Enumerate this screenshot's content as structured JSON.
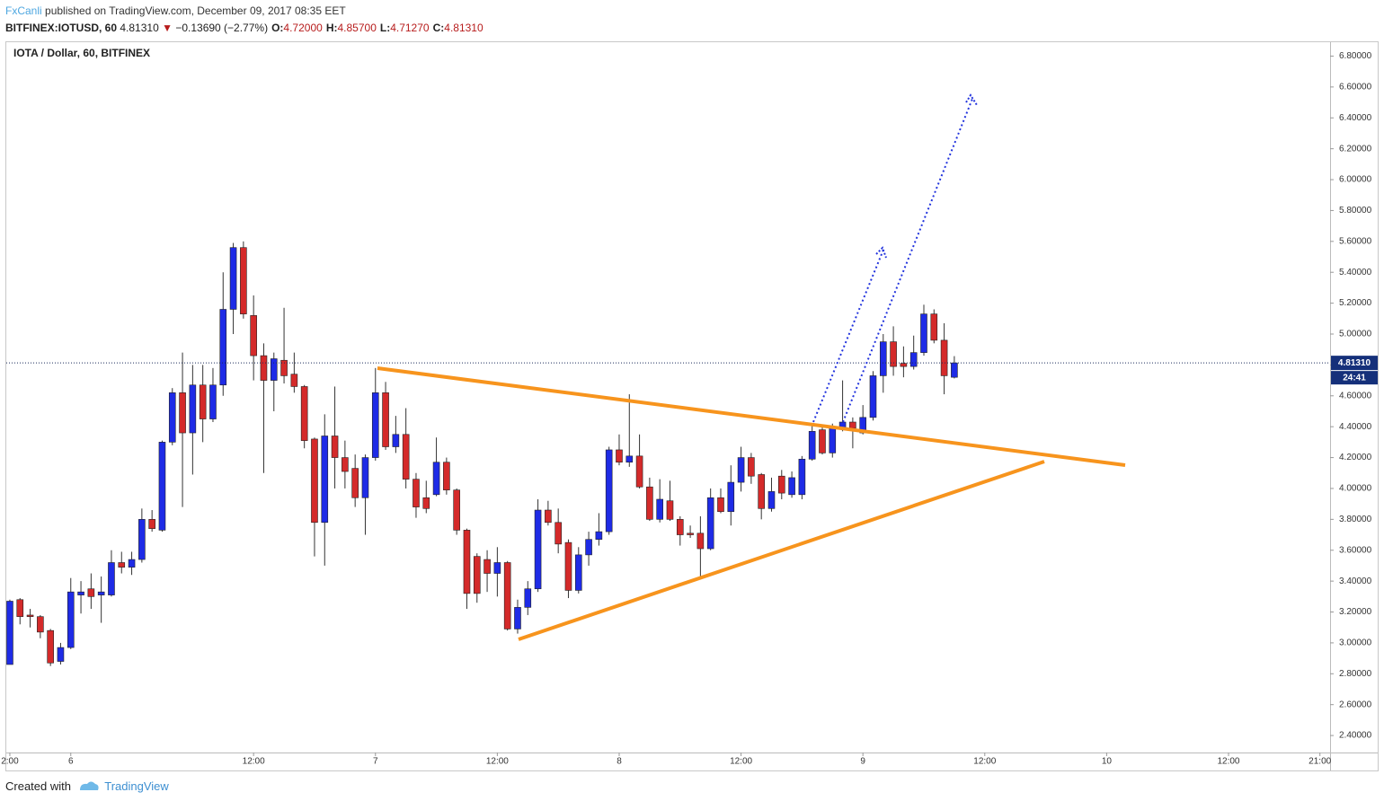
{
  "header": {
    "author": "FxCanli",
    "published": "published on TradingView.com, December 09, 2017 08:35 EET"
  },
  "symbol_bar": {
    "symbol": "BITFINEX:IOTUSD, 60",
    "last": "4.81310",
    "arrow": "▼",
    "change": "−0.13690 (−2.77%)",
    "ohlc": [
      {
        "label": "O:",
        "value": "4.72000"
      },
      {
        "label": "H:",
        "value": "4.85700"
      },
      {
        "label": "L:",
        "value": "4.71270"
      },
      {
        "label": "C:",
        "value": "4.81310"
      }
    ]
  },
  "chart_data": {
    "type": "candlestick",
    "title": "IOTA / Dollar, 60, BITFINEX",
    "up_color": "#1e2be6",
    "down_color": "#d42a2a",
    "open": [
      2.86,
      3.28,
      3.18,
      3.17,
      3.08,
      2.88,
      2.97,
      3.31,
      3.35,
      3.31,
      3.31,
      3.52,
      3.49,
      3.54,
      3.8,
      3.73,
      4.3,
      4.62,
      4.36,
      4.67,
      4.45,
      4.67,
      5.16,
      5.56,
      5.12,
      4.86,
      4.7,
      4.83,
      4.74,
      4.66,
      4.32,
      3.78,
      4.34,
      4.2,
      4.13,
      3.94,
      4.2,
      4.62,
      4.27,
      4.35,
      4.06,
      3.94,
      3.96,
      4.17,
      3.99,
      3.73,
      3.56,
      3.54,
      3.45,
      3.52,
      3.09,
      3.23,
      3.35,
      3.86,
      3.78,
      3.65,
      3.34,
      3.57,
      3.67,
      3.72,
      4.25,
      4.17,
      4.21,
      4.01,
      3.8,
      3.92,
      3.8,
      3.71,
      3.71,
      3.61,
      3.94,
      3.85,
      4.04,
      4.2,
      4.09,
      3.87,
      4.08,
      3.96,
      3.96,
      4.19,
      4.38,
      4.23,
      4.39,
      4.43,
      4.36,
      4.46,
      4.73,
      4.95,
      4.81,
      4.79,
      4.88,
      5.13,
      4.96,
      4.72
    ],
    "high": [
      3.28,
      3.29,
      3.22,
      3.18,
      3.09,
      3.0,
      3.42,
      3.4,
      3.45,
      3.43,
      3.6,
      3.59,
      3.59,
      3.87,
      3.86,
      4.31,
      4.65,
      4.88,
      4.8,
      4.8,
      4.78,
      5.4,
      5.59,
      5.6,
      5.25,
      4.94,
      4.88,
      5.17,
      4.88,
      4.67,
      4.33,
      4.48,
      4.66,
      4.31,
      4.22,
      4.22,
      4.78,
      4.69,
      4.47,
      4.52,
      4.1,
      4.05,
      4.33,
      4.2,
      4.0,
      3.74,
      3.58,
      3.6,
      3.62,
      3.53,
      3.28,
      3.4,
      3.93,
      3.92,
      3.87,
      3.67,
      3.62,
      3.72,
      3.84,
      4.27,
      4.35,
      4.61,
      4.35,
      4.07,
      4.06,
      4.05,
      3.82,
      3.76,
      3.82,
      4.0,
      4.0,
      4.15,
      4.27,
      4.23,
      4.1,
      4.07,
      4.12,
      4.11,
      4.21,
      4.42,
      4.41,
      4.42,
      4.7,
      4.46,
      4.54,
      4.76,
      5.0,
      5.05,
      4.92,
      4.99,
      5.19,
      5.16,
      5.07,
      4.857
    ],
    "low": [
      2.86,
      3.12,
      3.1,
      3.03,
      2.85,
      2.86,
      2.96,
      3.19,
      3.22,
      3.13,
      3.3,
      3.45,
      3.44,
      3.52,
      3.72,
      3.72,
      4.28,
      3.88,
      4.09,
      4.3,
      4.43,
      4.6,
      5.0,
      5.1,
      4.7,
      4.1,
      4.5,
      4.68,
      4.62,
      4.26,
      3.56,
      3.5,
      4.0,
      4.0,
      3.88,
      3.7,
      4.18,
      4.25,
      4.23,
      4.0,
      3.81,
      3.84,
      3.95,
      3.96,
      3.7,
      3.22,
      3.26,
      3.33,
      3.3,
      3.08,
      3.06,
      3.18,
      3.33,
      3.76,
      3.58,
      3.29,
      3.32,
      3.5,
      3.63,
      3.7,
      4.15,
      4.14,
      4.0,
      3.79,
      3.78,
      3.79,
      3.63,
      3.68,
      3.43,
      3.6,
      3.84,
      3.76,
      3.98,
      4.03,
      3.8,
      3.85,
      3.93,
      3.94,
      3.93,
      4.18,
      4.22,
      4.2,
      4.37,
      4.26,
      4.35,
      4.44,
      4.62,
      4.73,
      4.72,
      4.77,
      4.86,
      4.94,
      4.61,
      4.7127
    ],
    "close": [
      3.27,
      3.17,
      3.17,
      3.07,
      2.87,
      2.97,
      3.33,
      3.33,
      3.3,
      3.33,
      3.52,
      3.49,
      3.54,
      3.8,
      3.74,
      4.3,
      4.62,
      4.36,
      4.67,
      4.45,
      4.67,
      5.16,
      5.56,
      5.13,
      4.86,
      4.7,
      4.84,
      4.73,
      4.66,
      4.31,
      3.78,
      4.34,
      4.2,
      4.11,
      3.94,
      4.2,
      4.62,
      4.27,
      4.35,
      4.06,
      3.88,
      3.87,
      4.17,
      3.99,
      3.73,
      3.32,
      3.32,
      3.45,
      3.52,
      3.09,
      3.23,
      3.35,
      3.86,
      3.78,
      3.64,
      3.34,
      3.57,
      3.67,
      3.72,
      4.25,
      4.17,
      4.21,
      4.01,
      3.8,
      3.93,
      3.8,
      3.7,
      3.7,
      3.61,
      3.94,
      3.85,
      4.04,
      4.2,
      4.08,
      3.87,
      3.98,
      3.97,
      4.07,
      4.19,
      4.37,
      4.23,
      4.39,
      4.43,
      4.39,
      4.46,
      4.73,
      4.95,
      4.79,
      4.79,
      4.88,
      5.13,
      4.96,
      4.73,
      4.8131
    ],
    "xlim": [
      -0.35,
      130
    ],
    "xticks": [
      {
        "value": 0,
        "label": "2:00"
      },
      6.0,
      {
        "value": 24,
        "label": "12:00"
      },
      {
        "value": 36,
        "label": "7"
      },
      {
        "value": 48,
        "label": "12:00"
      },
      {
        "value": 60,
        "label": "8"
      },
      {
        "value": 72,
        "label": "12:00"
      },
      {
        "value": 84,
        "label": "9"
      },
      {
        "value": 96,
        "label": "12:00"
      },
      {
        "value": 108,
        "label": "10"
      },
      {
        "value": 120,
        "label": "12:00"
      },
      {
        "value": 129,
        "label": "21:00"
      }
    ],
    "ylim": [
      2.29,
      6.89
    ],
    "yticks": [
      {
        "value": 2.4,
        "label": "2.40000"
      },
      {
        "value": 2.6,
        "label": "2.60000"
      },
      {
        "value": 2.8,
        "label": "2.80000"
      },
      {
        "value": 3.0,
        "label": "3.00000"
      },
      {
        "value": 3.2,
        "label": "3.20000"
      },
      {
        "value": 3.4,
        "label": "3.40000"
      },
      {
        "value": 3.6,
        "label": "3.60000"
      },
      {
        "value": 3.8,
        "label": "3.80000"
      },
      {
        "value": 4.0,
        "label": "4.00000"
      },
      {
        "value": 4.2,
        "label": "4.20000"
      },
      {
        "value": 4.4,
        "label": "4.40000"
      },
      {
        "value": 4.6,
        "label": "4.60000"
      },
      {
        "value": 4.8,
        "label": "4.80000"
      },
      {
        "value": 5.0,
        "label": "5.00000"
      },
      {
        "value": 5.2,
        "label": "5.20000"
      },
      {
        "value": 5.4,
        "label": "5.40000"
      },
      {
        "value": 5.6,
        "label": "5.60000"
      },
      {
        "value": 5.8,
        "label": "5.80000"
      },
      {
        "value": 6.0,
        "label": "6.00000"
      },
      {
        "value": 6.2,
        "label": "6.20000"
      },
      {
        "value": 6.4,
        "label": "6.40000"
      },
      {
        "value": 6.6,
        "label": "6.60000"
      },
      {
        "value": 6.8,
        "label": "6.80000"
      }
    ],
    "last_price": {
      "value": 4.8131,
      "label": "4.81310"
    },
    "countdown": "24:41"
  },
  "footer": {
    "created": "Created with",
    "brand": "TradingView"
  }
}
